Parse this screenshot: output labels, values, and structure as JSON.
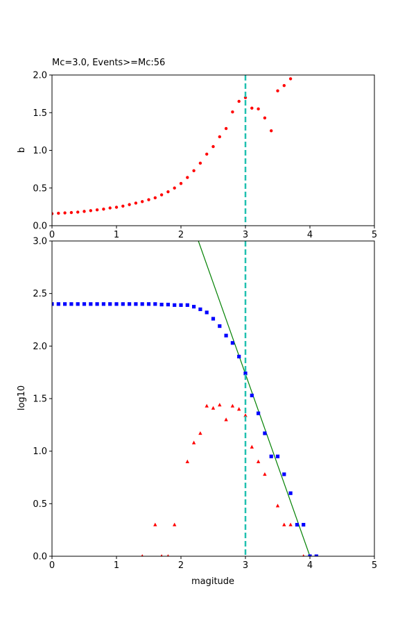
{
  "chart_data": [
    {
      "type": "scatter",
      "title": "Mc=3.0, Events>=Mc:56",
      "xlabel": "",
      "ylabel": "b",
      "xlim": [
        0,
        5
      ],
      "ylim": [
        0,
        2.0
      ],
      "xticks": [
        "0",
        "1",
        "2",
        "3",
        "4",
        "5"
      ],
      "yticks": [
        "0.0",
        "0.5",
        "1.0",
        "1.5",
        "2.0"
      ],
      "mc_line": 3.0,
      "series": [
        {
          "name": "",
          "marker": "circle",
          "color": "#ff0000",
          "x": [
            0.0,
            0.1,
            0.2,
            0.3,
            0.4,
            0.5,
            0.6,
            0.7,
            0.8,
            0.9,
            1.0,
            1.1,
            1.2,
            1.3,
            1.4,
            1.5,
            1.6,
            1.7,
            1.8,
            1.9,
            2.0,
            2.1,
            2.2,
            2.3,
            2.4,
            2.5,
            2.6,
            2.7,
            2.8,
            2.9,
            3.0,
            3.1,
            3.2,
            3.3,
            3.4,
            3.5,
            3.6,
            3.7
          ],
          "y": [
            0.16,
            0.165,
            0.17,
            0.175,
            0.18,
            0.19,
            0.2,
            0.21,
            0.22,
            0.235,
            0.245,
            0.26,
            0.28,
            0.3,
            0.32,
            0.345,
            0.37,
            0.41,
            0.45,
            0.5,
            0.56,
            0.64,
            0.73,
            0.83,
            0.95,
            1.05,
            1.18,
            1.29,
            1.51,
            1.65,
            1.7,
            1.56,
            1.55,
            1.43,
            1.26,
            1.79,
            1.86,
            1.95
          ]
        }
      ]
    },
    {
      "type": "scatter",
      "title": "",
      "xlabel": "magitude",
      "ylabel": "log10",
      "xlim": [
        0,
        5
      ],
      "ylim": [
        0,
        3.0
      ],
      "xticks": [
        "0",
        "1",
        "2",
        "3",
        "4",
        "5"
      ],
      "yticks": [
        "0.0",
        "0.5",
        "1.0",
        "1.5",
        "2.0",
        "2.5",
        "3.0"
      ],
      "mc_line": 3.0,
      "series": [
        {
          "name": "",
          "marker": "square",
          "color": "#0000ff",
          "x": [
            0.0,
            0.1,
            0.2,
            0.3,
            0.4,
            0.5,
            0.6,
            0.7,
            0.8,
            0.9,
            1.0,
            1.1,
            1.2,
            1.3,
            1.4,
            1.5,
            1.6,
            1.7,
            1.8,
            1.9,
            2.0,
            2.1,
            2.2,
            2.3,
            2.4,
            2.5,
            2.6,
            2.7,
            2.8,
            2.9,
            3.0,
            3.1,
            3.2,
            3.3,
            3.4,
            3.5,
            3.6,
            3.7,
            3.8,
            3.9,
            4.0,
            4.1
          ],
          "y": [
            2.4,
            2.4,
            2.4,
            2.4,
            2.4,
            2.4,
            2.4,
            2.4,
            2.4,
            2.4,
            2.4,
            2.4,
            2.4,
            2.4,
            2.4,
            2.4,
            2.4,
            2.395,
            2.395,
            2.39,
            2.39,
            2.39,
            2.375,
            2.35,
            2.32,
            2.26,
            2.19,
            2.1,
            2.03,
            1.9,
            1.74,
            1.53,
            1.36,
            1.17,
            0.95,
            0.95,
            0.78,
            0.6,
            0.3,
            0.3,
            0.0,
            0.0
          ]
        },
        {
          "name": "",
          "marker": "triangle",
          "color": "#ff0000",
          "x": [
            1.4,
            1.6,
            1.7,
            1.8,
            1.9,
            2.1,
            2.2,
            2.3,
            2.4,
            2.5,
            2.6,
            2.7,
            2.8,
            2.9,
            3.0,
            3.1,
            3.2,
            3.3,
            3.5,
            3.6,
            3.7,
            3.9
          ],
          "y": [
            0.0,
            0.3,
            0.0,
            0.0,
            0.3,
            0.9,
            1.08,
            1.17,
            1.43,
            1.41,
            1.44,
            1.3,
            1.43,
            1.4,
            1.34,
            1.04,
            0.9,
            0.78,
            0.48,
            0.3,
            0.3,
            0.0
          ]
        }
      ],
      "fit_line": {
        "color": "#008000",
        "x": [
          2.27,
          4.0
        ],
        "y": [
          3.0,
          0.0
        ]
      }
    }
  ],
  "style": {
    "mc_line_color": "#20c0b0",
    "axis_color": "#000000"
  }
}
